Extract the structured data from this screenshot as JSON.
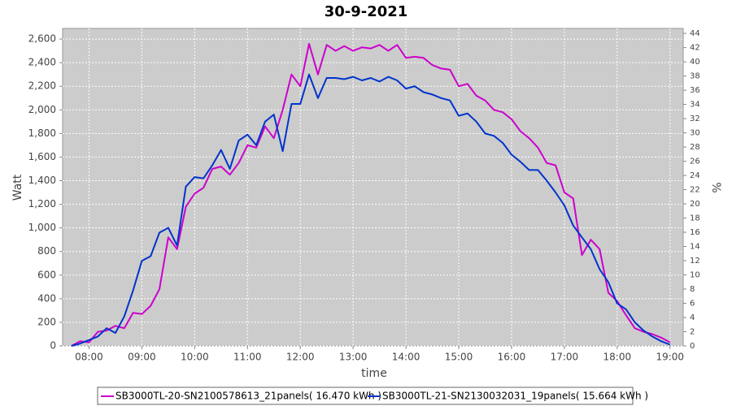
{
  "chart_data": {
    "type": "line",
    "title": "30-9-2021",
    "x_label": "time",
    "y_label": "Watt",
    "y2_label": "%",
    "x": [
      "07:40",
      "07:50",
      "08:00",
      "08:10",
      "08:20",
      "08:30",
      "08:40",
      "08:50",
      "09:00",
      "09:10",
      "09:20",
      "09:30",
      "09:40",
      "09:50",
      "10:00",
      "10:10",
      "10:20",
      "10:30",
      "10:40",
      "10:50",
      "11:00",
      "11:10",
      "11:20",
      "11:30",
      "11:40",
      "11:50",
      "12:00",
      "12:10",
      "12:20",
      "12:30",
      "12:40",
      "12:50",
      "13:00",
      "13:10",
      "13:20",
      "13:30",
      "13:40",
      "13:50",
      "14:00",
      "14:10",
      "14:20",
      "14:30",
      "14:40",
      "14:50",
      "15:00",
      "15:10",
      "15:20",
      "15:30",
      "15:40",
      "15:50",
      "16:00",
      "16:10",
      "16:20",
      "16:30",
      "16:40",
      "16:50",
      "17:00",
      "17:10",
      "17:20",
      "17:30",
      "17:40",
      "17:50",
      "18:00",
      "18:10",
      "18:20",
      "18:30",
      "18:40",
      "18:50",
      "19:00"
    ],
    "series": [
      {
        "name": "SB3000TL-20-SN2100578613_21panels( 16.470 kWh )",
        "color": "#cc00cc",
        "values": [
          0,
          40,
          30,
          120,
          130,
          170,
          150,
          280,
          270,
          340,
          480,
          920,
          820,
          1180,
          1290,
          1340,
          1500,
          1520,
          1450,
          1550,
          1700,
          1680,
          1860,
          1760,
          2000,
          2300,
          2200,
          2560,
          2300,
          2550,
          2500,
          2540,
          2500,
          2530,
          2520,
          2550,
          2500,
          2550,
          2440,
          2450,
          2440,
          2380,
          2350,
          2340,
          2200,
          2220,
          2120,
          2080,
          2000,
          1980,
          1920,
          1820,
          1760,
          1680,
          1550,
          1530,
          1300,
          1250,
          770,
          900,
          820,
          450,
          380,
          260,
          150,
          120,
          100,
          70,
          30
        ]
      },
      {
        "name": "SB3000TL-21-SN2130032031_19panels( 15.664 kWh )",
        "color": "#0033cc",
        "values": [
          0,
          20,
          50,
          80,
          150,
          110,
          250,
          470,
          720,
          760,
          960,
          1000,
          850,
          1350,
          1430,
          1420,
          1530,
          1660,
          1500,
          1740,
          1790,
          1700,
          1900,
          1960,
          1650,
          2050,
          2050,
          2300,
          2100,
          2270,
          2270,
          2260,
          2280,
          2250,
          2270,
          2240,
          2280,
          2250,
          2180,
          2200,
          2150,
          2130,
          2100,
          2080,
          1950,
          1970,
          1900,
          1800,
          1780,
          1720,
          1620,
          1560,
          1490,
          1490,
          1400,
          1300,
          1190,
          1020,
          920,
          820,
          650,
          540,
          360,
          310,
          200,
          130,
          80,
          40,
          10
        ]
      }
    ],
    "xlim": [
      "07:30",
      "19:15"
    ],
    "xticks": [
      "08:00",
      "09:00",
      "10:00",
      "11:00",
      "12:00",
      "13:00",
      "14:00",
      "15:00",
      "16:00",
      "17:00",
      "18:00",
      "19:00"
    ],
    "ylim": [
      0,
      2690
    ],
    "yticks": [
      0,
      200,
      400,
      600,
      800,
      {
        "value": 1000,
        "label": "1,000"
      },
      {
        "value": 1200,
        "label": "1,200"
      },
      {
        "value": 1400,
        "label": "1,400"
      },
      {
        "value": 1600,
        "label": "1,600"
      },
      {
        "value": 1800,
        "label": "1,800"
      },
      {
        "value": 2000,
        "label": "2,000"
      },
      {
        "value": 2200,
        "label": "2,200"
      },
      {
        "value": 2400,
        "label": "2,400"
      },
      {
        "value": 2600,
        "label": "2,600"
      }
    ],
    "y2lim": [
      0,
      44.7
    ],
    "y2ticks": [
      0,
      2,
      4,
      6,
      8,
      10,
      12,
      14,
      16,
      18,
      20,
      22,
      24,
      26,
      28,
      30,
      32,
      34,
      36,
      38,
      40,
      42,
      44
    ],
    "grid": true,
    "legend": "bottom"
  }
}
